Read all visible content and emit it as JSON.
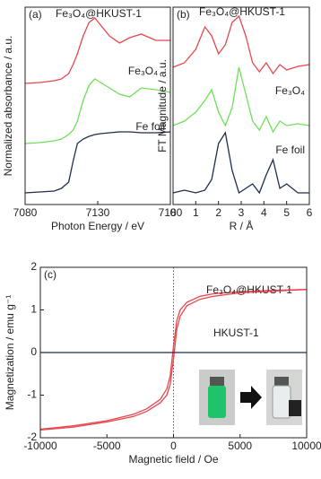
{
  "chart_data": [
    {
      "type": "line",
      "label": "(a)",
      "xlabel": "Photon Energy / eV",
      "ylabel": "Normalized absorbance / a.u.",
      "x": [
        7080,
        7090,
        7100,
        7105,
        7110,
        7113,
        7116,
        7120,
        7124,
        7128,
        7132,
        7138,
        7145,
        7152,
        7160,
        7170,
        7180
      ],
      "xlim": [
        7080,
        7180
      ],
      "xticks": [
        7080,
        7130,
        7180
      ],
      "ylim": [
        0,
        220
      ],
      "series": [
        {
          "name": "Fe₃O₄@HKUST-1",
          "color": "#e8474f",
          "values": [
            135,
            136,
            138,
            140,
            146,
            156,
            168,
            188,
            203,
            208,
            200,
            188,
            180,
            186,
            190,
            183,
            183
          ]
        },
        {
          "name": "Fe₃O₄",
          "color": "#6ee05a",
          "values": [
            68,
            69,
            71,
            73,
            78,
            83,
            93,
            116,
            133,
            140,
            136,
            130,
            123,
            120,
            130,
            128,
            125
          ]
        },
        {
          "name": "Fe foil",
          "color": "#1f2d4e",
          "values": [
            13,
            14,
            15,
            18,
            25,
            48,
            68,
            73,
            76,
            78,
            79,
            80,
            81,
            81,
            80,
            80,
            81
          ]
        }
      ]
    },
    {
      "type": "line",
      "label": "(b)",
      "xlabel": "R / Å",
      "ylabel": "FT Magnitude / a.u.",
      "x": [
        0,
        0.5,
        1,
        1.4,
        1.7,
        2,
        2.3,
        2.6,
        2.9,
        3.2,
        3.5,
        3.8,
        4.1,
        4.4,
        4.7,
        5,
        5.5,
        6
      ],
      "xlim": [
        0,
        6
      ],
      "xticks": [
        0,
        1,
        2,
        3,
        4,
        5,
        6
      ],
      "ylim": [
        0,
        220
      ],
      "series": [
        {
          "name": "Fe₃O₄@HKUST-1",
          "color": "#e8474f",
          "values": [
            153,
            158,
            173,
            198,
            188,
            168,
            178,
            203,
            210,
            188,
            158,
            148,
            158,
            146,
            156,
            150,
            154,
            156
          ]
        },
        {
          "name": "Fe₃O₄",
          "color": "#6ee05a",
          "values": [
            88,
            93,
            103,
            116,
            128,
            103,
            88,
            108,
            153,
            123,
            93,
            83,
            98,
            81,
            93,
            88,
            90,
            88
          ]
        },
        {
          "name": "Fe foil",
          "color": "#1f2d4e",
          "values": [
            13,
            16,
            13,
            16,
            28,
            68,
            80,
            38,
            13,
            18,
            23,
            13,
            33,
            50,
            18,
            23,
            13,
            13
          ]
        }
      ]
    },
    {
      "type": "line",
      "label": "(c)",
      "xlabel": "Magnetic field / Oe",
      "ylabel": "Magnetization / emu g⁻¹",
      "x": [
        -10000,
        -7500,
        -5000,
        -3000,
        -2000,
        -1000,
        -500,
        -250,
        0,
        250,
        500,
        1000,
        2000,
        3000,
        5000,
        7500,
        10000
      ],
      "xlim": [
        -10000,
        10000
      ],
      "xticks": [
        -10000,
        -5000,
        0,
        5000,
        10000
      ],
      "ylim": [
        -2,
        2
      ],
      "yticks": [
        -2,
        -1,
        0,
        1,
        2
      ],
      "series": [
        {
          "name": "Fe₃O₄@HKUST-1",
          "color": "#e8474f",
          "values": [
            -1.8,
            -1.72,
            -1.6,
            -1.45,
            -1.32,
            -1.1,
            -0.85,
            -0.55,
            0.15,
            0.75,
            1.0,
            1.18,
            1.32,
            1.38,
            1.43,
            1.46,
            1.48
          ]
        },
        {
          "color": "#e8474f",
          "values": [
            -1.82,
            -1.75,
            -1.63,
            -1.5,
            -1.38,
            -1.18,
            -1.0,
            -0.75,
            -0.15,
            0.55,
            0.85,
            1.1,
            1.25,
            1.32,
            1.4,
            1.44,
            1.48
          ]
        },
        {
          "name": "HKUST-1",
          "color": "#1f2d4e",
          "values": [
            0,
            0,
            0,
            0,
            0,
            0,
            0,
            0,
            0,
            0,
            0,
            0,
            0,
            0,
            0,
            0,
            0
          ]
        }
      ]
    }
  ]
}
